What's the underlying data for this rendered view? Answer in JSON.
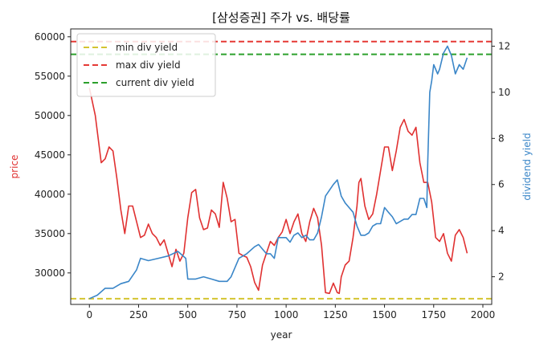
{
  "chart_data": {
    "type": "line",
    "title": "[삼성증권] 주가 vs. 배당률",
    "xlabel": "year",
    "ylabel_left": "price",
    "ylabel_right": "dividend yield",
    "x_ticks": [
      0,
      250,
      500,
      750,
      1000,
      1250,
      1500,
      1750,
      2000
    ],
    "y_left_ticks": [
      30000,
      35000,
      40000,
      45000,
      50000,
      55000,
      60000
    ],
    "y_right_ticks": [
      2,
      4,
      6,
      8,
      10,
      12
    ],
    "xlim": [
      -95,
      2045
    ],
    "ylim_left": [
      26000,
      61000
    ],
    "ylim_right": [
      0.8,
      12.75
    ],
    "grid": false,
    "legend_position": "top-left",
    "legend": [
      {
        "label": "min div yield",
        "color": "#d4c430"
      },
      {
        "label": "max div yield",
        "color": "#e53935"
      },
      {
        "label": "current div yield",
        "color": "#2ca02c"
      }
    ],
    "reference_lines": [
      {
        "name": "min div yield",
        "axis": "right",
        "value": 1.05,
        "color": "#d4c430",
        "style": "dashed"
      },
      {
        "name": "max div yield",
        "axis": "right",
        "value": 12.2,
        "color": "#e53935",
        "style": "dashed"
      },
      {
        "name": "current div yield",
        "axis": "right",
        "value": 11.65,
        "color": "#2ca02c",
        "style": "dashed"
      }
    ],
    "series": [
      {
        "axis": "left",
        "color": "#e03131",
        "points": [
          [
            0,
            53500
          ],
          [
            30,
            50000
          ],
          [
            60,
            44000
          ],
          [
            80,
            44500
          ],
          [
            100,
            46000
          ],
          [
            120,
            45500
          ],
          [
            140,
            42000
          ],
          [
            160,
            38000
          ],
          [
            180,
            35000
          ],
          [
            200,
            38500
          ],
          [
            220,
            38500
          ],
          [
            240,
            36500
          ],
          [
            260,
            34500
          ],
          [
            280,
            34800
          ],
          [
            300,
            36200
          ],
          [
            320,
            35000
          ],
          [
            340,
            34500
          ],
          [
            360,
            33500
          ],
          [
            380,
            34200
          ],
          [
            400,
            32500
          ],
          [
            420,
            30800
          ],
          [
            440,
            33000
          ],
          [
            460,
            31500
          ],
          [
            480,
            32500
          ],
          [
            500,
            37000
          ],
          [
            520,
            40200
          ],
          [
            540,
            40600
          ],
          [
            560,
            37000
          ],
          [
            580,
            35500
          ],
          [
            600,
            35700
          ],
          [
            620,
            38000
          ],
          [
            640,
            37500
          ],
          [
            660,
            35800
          ],
          [
            680,
            41500
          ],
          [
            700,
            39500
          ],
          [
            720,
            36500
          ],
          [
            740,
            36800
          ],
          [
            760,
            32500
          ],
          [
            780,
            32200
          ],
          [
            800,
            32000
          ],
          [
            820,
            30800
          ],
          [
            840,
            28800
          ],
          [
            860,
            27800
          ],
          [
            880,
            31000
          ],
          [
            900,
            32500
          ],
          [
            920,
            34000
          ],
          [
            940,
            33500
          ],
          [
            960,
            34500
          ],
          [
            980,
            35200
          ],
          [
            1000,
            36800
          ],
          [
            1020,
            35000
          ],
          [
            1040,
            36500
          ],
          [
            1060,
            37500
          ],
          [
            1080,
            35000
          ],
          [
            1100,
            34000
          ],
          [
            1120,
            36500
          ],
          [
            1140,
            38200
          ],
          [
            1160,
            37000
          ],
          [
            1180,
            33500
          ],
          [
            1200,
            27500
          ],
          [
            1220,
            27400
          ],
          [
            1240,
            28700
          ],
          [
            1260,
            27500
          ],
          [
            1270,
            27400
          ],
          [
            1280,
            29500
          ],
          [
            1300,
            31000
          ],
          [
            1320,
            31500
          ],
          [
            1340,
            34500
          ],
          [
            1360,
            38500
          ],
          [
            1370,
            41500
          ],
          [
            1380,
            42000
          ],
          [
            1400,
            38500
          ],
          [
            1420,
            36800
          ],
          [
            1440,
            37500
          ],
          [
            1460,
            40000
          ],
          [
            1480,
            43000
          ],
          [
            1500,
            46000
          ],
          [
            1520,
            46000
          ],
          [
            1540,
            43000
          ],
          [
            1560,
            45500
          ],
          [
            1580,
            48500
          ],
          [
            1600,
            49500
          ],
          [
            1620,
            48000
          ],
          [
            1640,
            47500
          ],
          [
            1660,
            48500
          ],
          [
            1680,
            44000
          ],
          [
            1700,
            41500
          ],
          [
            1720,
            41500
          ],
          [
            1740,
            39000
          ],
          [
            1760,
            34500
          ],
          [
            1780,
            34000
          ],
          [
            1800,
            35000
          ],
          [
            1820,
            32500
          ],
          [
            1840,
            31500
          ],
          [
            1860,
            34800
          ],
          [
            1880,
            35500
          ],
          [
            1900,
            34500
          ],
          [
            1920,
            32500
          ]
        ]
      },
      {
        "axis": "right",
        "color": "#3a86c8",
        "points": [
          [
            0,
            1.05
          ],
          [
            40,
            1.2
          ],
          [
            80,
            1.5
          ],
          [
            120,
            1.5
          ],
          [
            160,
            1.7
          ],
          [
            200,
            1.8
          ],
          [
            240,
            2.3
          ],
          [
            260,
            2.8
          ],
          [
            300,
            2.7
          ],
          [
            350,
            2.8
          ],
          [
            400,
            2.9
          ],
          [
            450,
            3.1
          ],
          [
            490,
            2.8
          ],
          [
            500,
            1.9
          ],
          [
            540,
            1.9
          ],
          [
            580,
            2.0
          ],
          [
            620,
            1.9
          ],
          [
            660,
            1.8
          ],
          [
            700,
            1.8
          ],
          [
            720,
            2.0
          ],
          [
            760,
            2.8
          ],
          [
            800,
            3.0
          ],
          [
            840,
            3.3
          ],
          [
            860,
            3.4
          ],
          [
            880,
            3.2
          ],
          [
            900,
            3.0
          ],
          [
            920,
            3.0
          ],
          [
            940,
            2.8
          ],
          [
            960,
            3.7
          ],
          [
            980,
            3.7
          ],
          [
            1000,
            3.7
          ],
          [
            1020,
            3.5
          ],
          [
            1040,
            3.8
          ],
          [
            1060,
            3.9
          ],
          [
            1080,
            3.7
          ],
          [
            1100,
            3.8
          ],
          [
            1120,
            3.6
          ],
          [
            1140,
            3.6
          ],
          [
            1160,
            3.9
          ],
          [
            1180,
            4.6
          ],
          [
            1200,
            5.5
          ],
          [
            1240,
            6.0
          ],
          [
            1260,
            6.2
          ],
          [
            1280,
            5.5
          ],
          [
            1300,
            5.2
          ],
          [
            1340,
            4.8
          ],
          [
            1360,
            4.2
          ],
          [
            1380,
            3.8
          ],
          [
            1400,
            3.8
          ],
          [
            1420,
            3.9
          ],
          [
            1440,
            4.2
          ],
          [
            1460,
            4.3
          ],
          [
            1480,
            4.3
          ],
          [
            1500,
            5.0
          ],
          [
            1520,
            4.8
          ],
          [
            1540,
            4.6
          ],
          [
            1560,
            4.3
          ],
          [
            1580,
            4.4
          ],
          [
            1600,
            4.5
          ],
          [
            1620,
            4.5
          ],
          [
            1640,
            4.7
          ],
          [
            1660,
            4.7
          ],
          [
            1680,
            5.4
          ],
          [
            1700,
            5.4
          ],
          [
            1715,
            5.0
          ],
          [
            1720,
            7.0
          ],
          [
            1730,
            10.0
          ],
          [
            1740,
            10.5
          ],
          [
            1750,
            11.2
          ],
          [
            1770,
            10.8
          ],
          [
            1780,
            11.0
          ],
          [
            1800,
            11.7
          ],
          [
            1820,
            12.0
          ],
          [
            1840,
            11.6
          ],
          [
            1860,
            10.8
          ],
          [
            1880,
            11.2
          ],
          [
            1900,
            11.0
          ],
          [
            1920,
            11.5
          ]
        ]
      }
    ]
  }
}
